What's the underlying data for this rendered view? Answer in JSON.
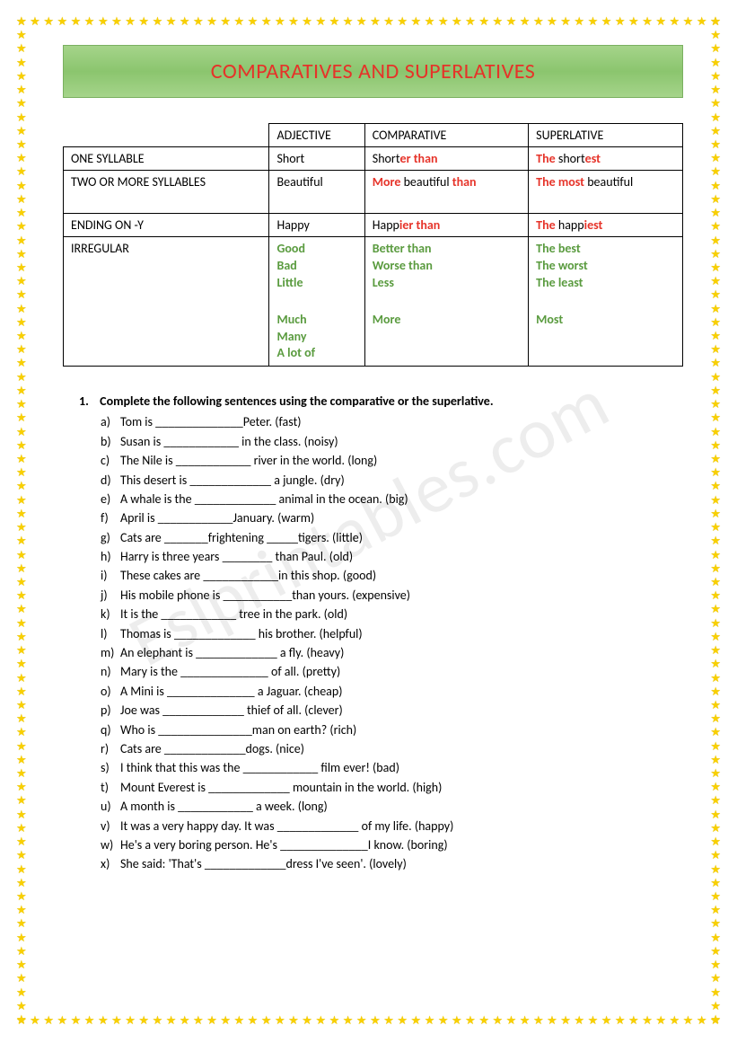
{
  "title": "COMPARATIVES AND SUPERLATIVES",
  "watermark": "Eslprintables.com",
  "table": {
    "headers": [
      "",
      "ADJECTIVE",
      "COMPARATIVE",
      "SUPERLATIVE"
    ],
    "rows": [
      {
        "label": "ONE SYLLABLE",
        "adj": [
          {
            "t": "Short"
          }
        ],
        "comp": [
          {
            "t": "Short"
          },
          {
            "t": "er than",
            "c": "red"
          }
        ],
        "sup": [
          {
            "t": "The ",
            "c": "red"
          },
          {
            "t": "short"
          },
          {
            "t": "est",
            "c": "red"
          }
        ]
      },
      {
        "label": "TWO OR MORE SYLLABLES",
        "adj": [
          {
            "t": "Beautiful"
          }
        ],
        "comp": [
          {
            "t": "More ",
            "c": "red"
          },
          {
            "t": "beautiful "
          },
          {
            "t": "than",
            "c": "red"
          }
        ],
        "sup": [
          {
            "t": "The most ",
            "c": "red"
          },
          {
            "t": "beautiful"
          }
        ],
        "tall": true
      },
      {
        "label": "ENDING ON -Y",
        "adj": [
          {
            "t": "Happy"
          }
        ],
        "comp": [
          {
            "t": "Happ"
          },
          {
            "t": "ier than",
            "c": "red"
          }
        ],
        "sup": [
          {
            "t": "The ",
            "c": "red"
          },
          {
            "t": "happ"
          },
          {
            "t": "iest",
            "c": "red"
          }
        ]
      }
    ],
    "irregular": {
      "label": "IRREGULAR",
      "adj1": [
        "Good",
        "Bad",
        "Little"
      ],
      "comp1": [
        "Better than",
        "Worse than",
        "Less"
      ],
      "sup1": [
        "The best",
        "The worst",
        "The least"
      ],
      "adj2": [
        "Much",
        "Many",
        "A lot of"
      ],
      "comp2": [
        "More"
      ],
      "sup2": [
        "Most"
      ]
    }
  },
  "exercise": {
    "number": "1.",
    "instruction": "Complete the following sentences using the comparative or the superlative.",
    "items": [
      {
        "l": "a)",
        "t": "Tom is ______________Peter. (fast)"
      },
      {
        "l": "b)",
        "t": "Susan is ____________ in the class. (noisy)"
      },
      {
        "l": "c)",
        "t": "The Nile is ____________ river in the world. (long)"
      },
      {
        "l": "d)",
        "t": "This desert is _____________ a jungle. (dry)"
      },
      {
        "l": "e)",
        "t": "A whale is the _____________ animal in the ocean. (big)"
      },
      {
        "l": "f)",
        "t": "April is ____________January. (warm)"
      },
      {
        "l": "g)",
        "t": "Cats are _______frightening _____tigers. (little)"
      },
      {
        "l": "h)",
        "t": "Harry is three years ________ than Paul. (old)"
      },
      {
        "l": "i)",
        "t": "These cakes are ____________in this shop. (good)"
      },
      {
        "l": "j)",
        "t": "His mobile phone is ___________than yours. (expensive)"
      },
      {
        "l": "k)",
        "t": "It is the ____________ tree in the park. (old)"
      },
      {
        "l": "l)",
        "t": "Thomas is _____________ his brother. (helpful)"
      },
      {
        "l": "m)",
        "t": "An elephant is _____________ a fly. (heavy)"
      },
      {
        "l": "n)",
        "t": "Mary is the ______________ of all. (pretty)"
      },
      {
        "l": "o)",
        "t": "A Mini is ______________ a Jaguar. (cheap)"
      },
      {
        "l": "p)",
        "t": "Joe was _____________ thief of all. (clever)"
      },
      {
        "l": "q)",
        "t": "Who is _______________man on earth? (rich)"
      },
      {
        "l": "r)",
        "t": "Cats are _____________dogs. (nice)"
      },
      {
        "l": "s)",
        "t": "I think that this was the ____________ film ever! (bad)"
      },
      {
        "l": "t)",
        "t": "Mount Everest is _____________ mountain in the world. (high)"
      },
      {
        "l": "u)",
        "t": "A month is ____________ a week. (long)"
      },
      {
        "l": "v)",
        "t": "It was a very happy day. It was _____________ of my life. (happy)"
      },
      {
        "l": "w)",
        "t": "He's a very boring person. He's ______________I know. (boring)"
      },
      {
        "l": "x)",
        "t": "She said: 'That's _____________dress I've seen'. (lovely)"
      }
    ]
  },
  "stars": {
    "horiz": 52,
    "vert": 74
  }
}
